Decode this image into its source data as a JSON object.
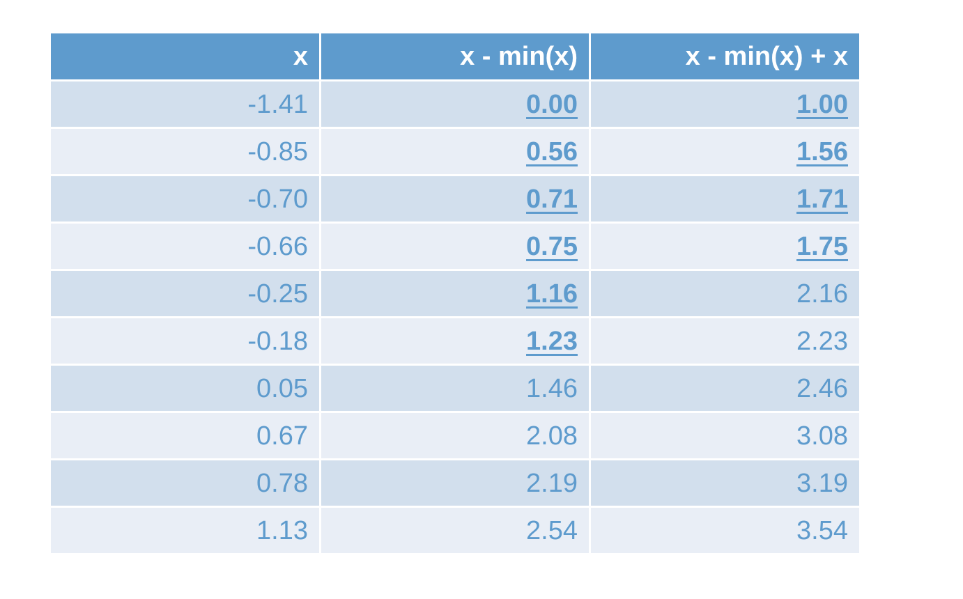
{
  "table": {
    "headers": [
      "x",
      "x - min(x)",
      "x - min(x) + x"
    ],
    "rows": [
      {
        "cells": [
          "-1.41",
          "0.00",
          "1.00"
        ],
        "highlight": [
          false,
          true,
          true
        ]
      },
      {
        "cells": [
          "-0.85",
          "0.56",
          "1.56"
        ],
        "highlight": [
          false,
          true,
          true
        ]
      },
      {
        "cells": [
          "-0.70",
          "0.71",
          "1.71"
        ],
        "highlight": [
          false,
          true,
          true
        ]
      },
      {
        "cells": [
          "-0.66",
          "0.75",
          "1.75"
        ],
        "highlight": [
          false,
          true,
          true
        ]
      },
      {
        "cells": [
          "-0.25",
          "1.16",
          "2.16"
        ],
        "highlight": [
          false,
          true,
          false
        ]
      },
      {
        "cells": [
          "-0.18",
          "1.23",
          "2.23"
        ],
        "highlight": [
          false,
          true,
          false
        ]
      },
      {
        "cells": [
          "0.05",
          "1.46",
          "2.46"
        ],
        "highlight": [
          false,
          false,
          false
        ]
      },
      {
        "cells": [
          "0.67",
          "2.08",
          "3.08"
        ],
        "highlight": [
          false,
          false,
          false
        ]
      },
      {
        "cells": [
          "0.78",
          "2.19",
          "3.19"
        ],
        "highlight": [
          false,
          false,
          false
        ]
      },
      {
        "cells": [
          "1.13",
          "2.54",
          "3.54"
        ],
        "highlight": [
          false,
          false,
          false
        ]
      }
    ]
  },
  "colors": {
    "header_bg": "#5e9bcd",
    "header_text": "#ffffff",
    "row_odd_bg": "#d2dfed",
    "row_even_bg": "#e9eef6",
    "cell_text": "#5e9bcd"
  }
}
